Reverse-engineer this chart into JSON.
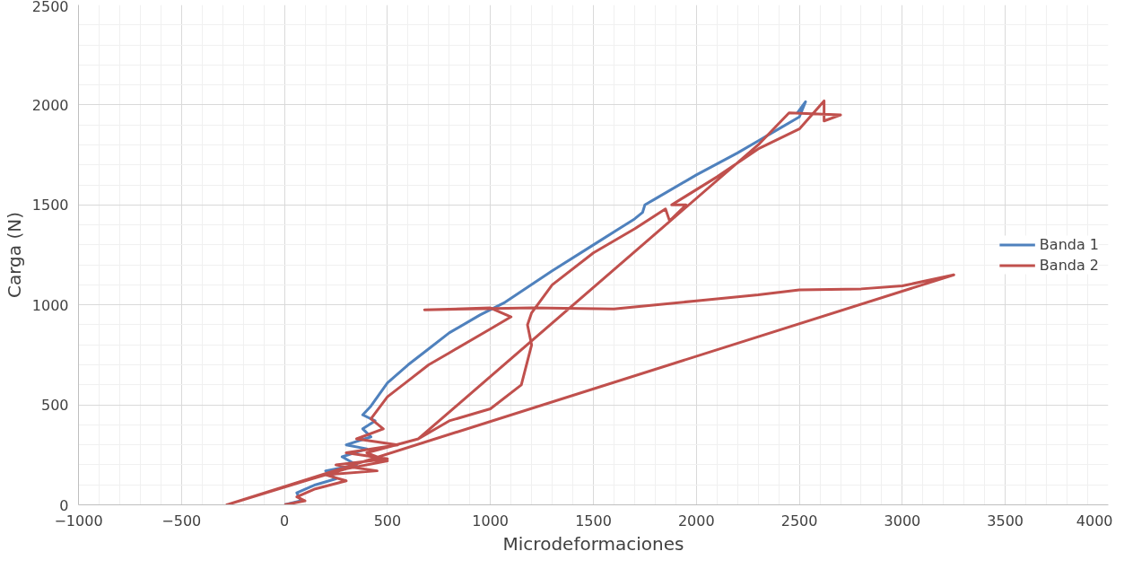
{
  "chart_data": {
    "type": "line",
    "xlabel": "Microdeformaciones",
    "ylabel": "Carga (N)",
    "xlim": [
      -1000,
      4000
    ],
    "ylim": [
      0,
      2500
    ],
    "xticks": [
      -1000,
      -500,
      0,
      500,
      1000,
      1500,
      2000,
      2500,
      3000,
      3500,
      4000
    ],
    "yticks": [
      0,
      500,
      1000,
      1500,
      2000,
      2500
    ],
    "grid": true,
    "legend": "right",
    "line_style": "solid",
    "marker": "none",
    "series": [
      {
        "name": "Banda 1",
        "color": "#4f81bd",
        "x": [
          0,
          80,
          60,
          150,
          250,
          200,
          350,
          280,
          400,
          300,
          420,
          380,
          440,
          380,
          420,
          500,
          600,
          700,
          800,
          950,
          1071,
          1300,
          1500,
          1700,
          1739,
          1750,
          1800,
          2000,
          2200,
          2300,
          2400,
          2500,
          2530,
          2490
        ],
        "values": [
          0,
          20,
          60,
          100,
          130,
          170,
          200,
          240,
          280,
          300,
          340,
          380,
          420,
          450,
          494,
          610,
          700,
          780,
          860,
          950,
          1013,
          1170,
          1300,
          1430,
          1463,
          1500,
          1530,
          1650,
          1760,
          1820,
          1880,
          1940,
          2016,
          1960
        ]
      },
      {
        "name": "Banda 2",
        "color": "#c0504d",
        "x": [
          0,
          100,
          60,
          150,
          300,
          200,
          450,
          250,
          500,
          300,
          550,
          350,
          480,
          420,
          500,
          600,
          700,
          800,
          1000,
          1100,
          1000,
          680,
          900,
          1200,
          1600,
          1700,
          2000,
          2300,
          2500,
          2800,
          3000,
          3250,
          -280,
          100,
          300,
          500,
          400,
          650,
          800,
          1000,
          1150,
          1200,
          1180,
          1200,
          1300,
          1500,
          1700,
          1850,
          1870,
          1950,
          1880,
          2100,
          2300,
          2500,
          2620,
          2620,
          2700,
          2450,
          2300,
          650
        ],
        "values": [
          0,
          20,
          40,
          80,
          120,
          150,
          170,
          200,
          230,
          260,
          300,
          330,
          380,
          430,
          540,
          620,
          700,
          760,
          880,
          940,
          985,
          975,
          980,
          985,
          980,
          990,
          1020,
          1050,
          1075,
          1080,
          1095,
          1150,
          0,
          120,
          180,
          220,
          260,
          330,
          420,
          480,
          600,
          800,
          900,
          960,
          1100,
          1260,
          1380,
          1480,
          1420,
          1500,
          1500,
          1640,
          1780,
          1880,
          2020,
          1920,
          1950,
          1960,
          1800,
          330
        ]
      }
    ]
  }
}
